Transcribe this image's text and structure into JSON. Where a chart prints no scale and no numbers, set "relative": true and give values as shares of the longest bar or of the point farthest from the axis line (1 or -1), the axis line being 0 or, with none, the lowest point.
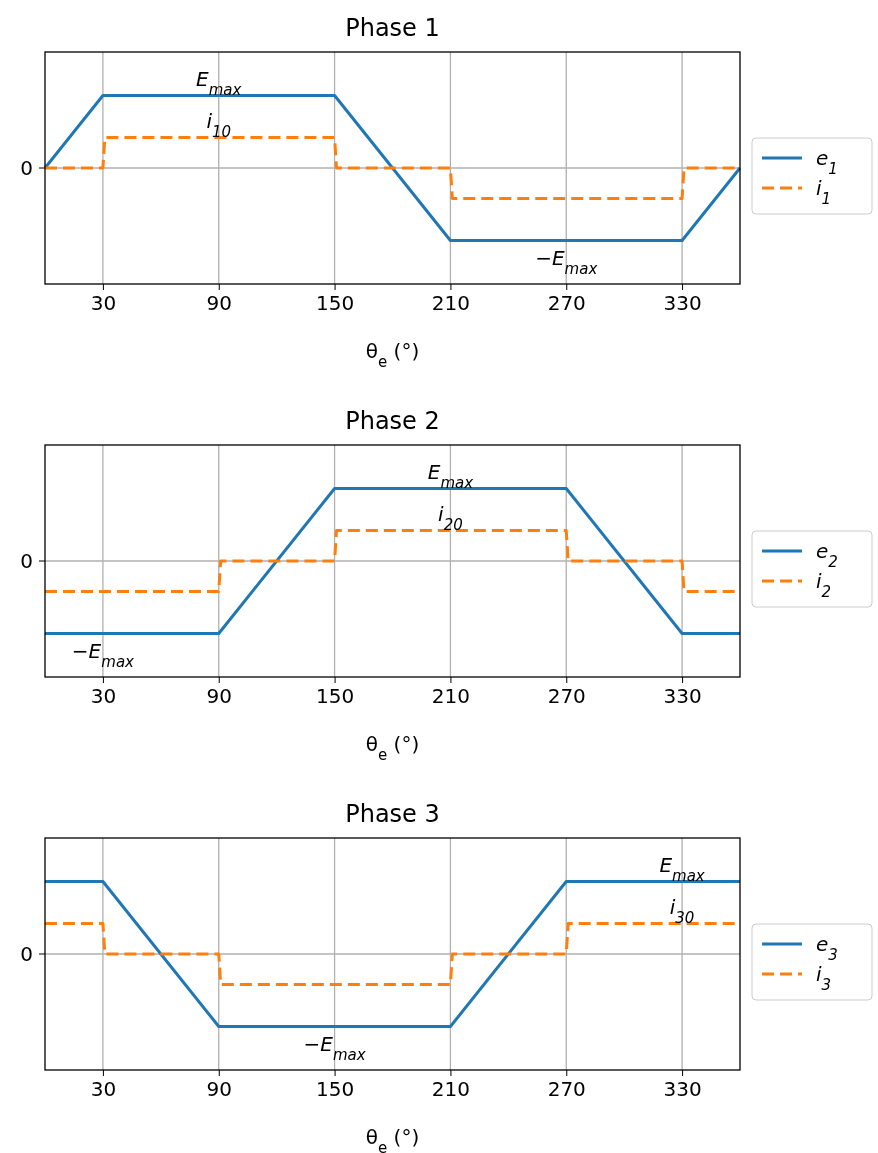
{
  "chart_data": [
    {
      "type": "line",
      "title": "Phase 1",
      "xlabel": "θ$_{e}$ (°)",
      "relative": true,
      "xlim": [
        0,
        360
      ],
      "xticks": [
        30,
        90,
        150,
        210,
        270,
        330
      ],
      "grid": "x",
      "legend": "right",
      "ref_lines": [
        {
          "axis": "y",
          "value": 0,
          "label": "0",
          "color": "#b0b0b0"
        }
      ],
      "series": [
        {
          "name": "e$_{1}$",
          "color": "#1f77b4",
          "line_style": "solid",
          "x": [
            0,
            30,
            150,
            210,
            330,
            360
          ],
          "values": [
            0,
            1,
            1,
            -1,
            -1,
            0
          ]
        },
        {
          "name": "i$_{1}$",
          "color": "#ff7f0e",
          "line_style": "dashed",
          "x": [
            0,
            30,
            31,
            150,
            151,
            210,
            211,
            330,
            331,
            360
          ],
          "values": [
            0,
            0,
            0.42,
            0.42,
            0,
            0,
            -0.42,
            -0.42,
            0,
            0
          ]
        }
      ],
      "annotations": [
        {
          "text": "E$_{max}$",
          "x": 90,
          "y": 1
        },
        {
          "text": "i$_{10}$",
          "x": 90,
          "y": 0.42
        },
        {
          "text": "−E$_{max}$",
          "x": 270,
          "y": -1
        }
      ]
    },
    {
      "type": "line",
      "title": "Phase 2",
      "xlabel": "θ$_{e}$ (°)",
      "relative": true,
      "xlim": [
        0,
        360
      ],
      "xticks": [
        30,
        90,
        150,
        210,
        270,
        330
      ],
      "grid": "x",
      "legend": "right",
      "ref_lines": [
        {
          "axis": "y",
          "value": 0,
          "label": "0",
          "color": "#b0b0b0"
        }
      ],
      "series": [
        {
          "name": "e$_{2}$",
          "color": "#1f77b4",
          "line_style": "solid",
          "x": [
            0,
            90,
            150,
            270,
            330,
            360
          ],
          "values": [
            -1,
            -1,
            1,
            1,
            -1,
            -1
          ]
        },
        {
          "name": "i$_{2}$",
          "color": "#ff7f0e",
          "line_style": "dashed",
          "x": [
            0,
            90,
            91,
            150,
            151,
            270,
            271,
            330,
            331,
            360
          ],
          "values": [
            -0.42,
            -0.42,
            0,
            0,
            0.42,
            0.42,
            0,
            0,
            -0.42,
            -0.42
          ]
        }
      ],
      "annotations": [
        {
          "text": "E$_{max}$",
          "x": 210,
          "y": 1
        },
        {
          "text": "i$_{20}$",
          "x": 210,
          "y": 0.42
        },
        {
          "text": "−E$_{max}$",
          "x": 30,
          "y": -1
        }
      ]
    },
    {
      "type": "line",
      "title": "Phase 3",
      "xlabel": "θ$_{e}$ (°)",
      "relative": true,
      "xlim": [
        0,
        360
      ],
      "xticks": [
        30,
        90,
        150,
        210,
        270,
        330
      ],
      "grid": "x",
      "legend": "right",
      "ref_lines": [
        {
          "axis": "y",
          "value": 0,
          "label": "0",
          "color": "#b0b0b0"
        }
      ],
      "series": [
        {
          "name": "e$_{3}$",
          "color": "#1f77b4",
          "line_style": "solid",
          "x": [
            0,
            30,
            90,
            210,
            270,
            360
          ],
          "values": [
            1,
            1,
            -1,
            -1,
            1,
            1
          ]
        },
        {
          "name": "i$_{3}$",
          "color": "#ff7f0e",
          "line_style": "dashed",
          "x": [
            0,
            30,
            31,
            90,
            91,
            210,
            211,
            270,
            271,
            360
          ],
          "values": [
            0.42,
            0.42,
            0,
            0,
            -0.42,
            -0.42,
            0,
            0,
            0.42,
            0.42
          ]
        }
      ],
      "annotations": [
        {
          "text": "E$_{max}$",
          "x": 330,
          "y": 1
        },
        {
          "text": "i$_{30}$",
          "x": 330,
          "y": 0.42
        },
        {
          "text": "−E$_{max}$",
          "x": 150,
          "y": -1
        }
      ]
    }
  ]
}
